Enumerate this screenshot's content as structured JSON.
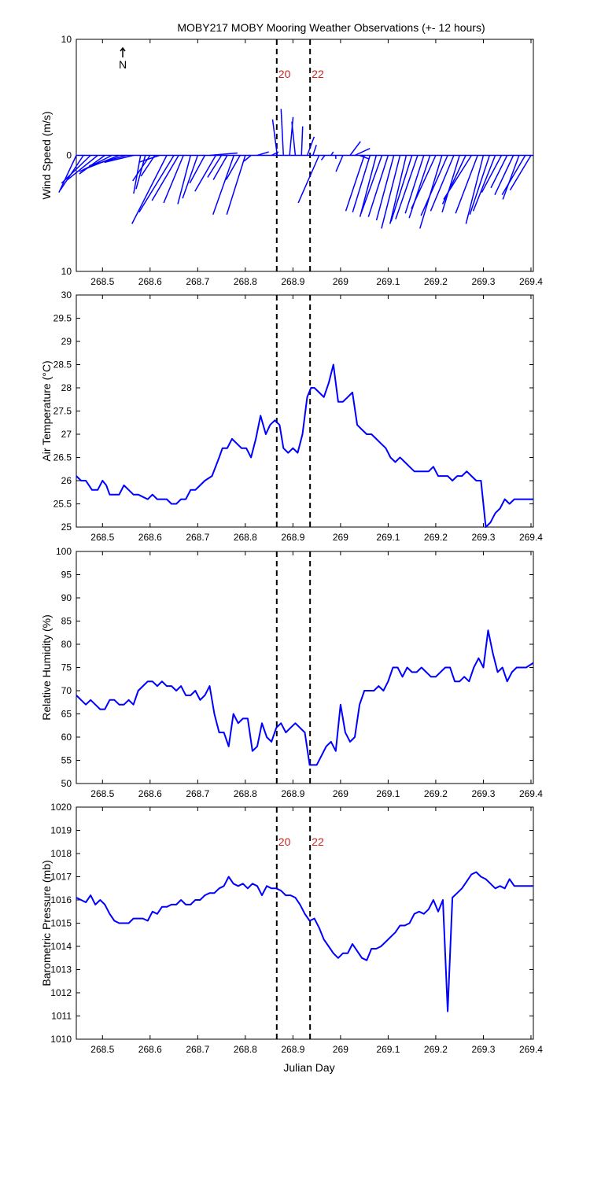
{
  "title": "MOBY217 MOBY Mooring Weather Observations (+- 12 hours)",
  "xlabel": "Julian Day",
  "north_label": "N",
  "colors": {
    "series": "#0000ff",
    "marker_label": "#cc2222",
    "axis": "#000000"
  },
  "markers": [
    {
      "x": 268.866,
      "label": "20"
    },
    {
      "x": 268.936,
      "label": "22"
    }
  ],
  "chart_data": [
    {
      "type": "quiver",
      "ylabel": "Wind Speed (m/s)",
      "xlim": [
        268.445,
        269.405
      ],
      "ylim": [
        -10,
        10
      ],
      "yticks": [
        -10,
        0,
        10
      ],
      "ytick_labels": [
        "10",
        "0",
        "10"
      ],
      "xticks": [
        268.5,
        268.6,
        268.7,
        268.8,
        268.9,
        269.0,
        269.1,
        269.2,
        269.3,
        269.4
      ],
      "xtick_labels": [
        "268.5",
        "268.6",
        "268.7",
        "268.8",
        "268.9",
        "269",
        "269.1",
        "269.2",
        "269.3",
        "269.4"
      ],
      "show_marker_labels": true,
      "data": [
        [
          268.445,
          -1.5,
          -3.2
        ],
        [
          268.46,
          -2.0,
          -3.0
        ],
        [
          268.475,
          -2.5,
          -2.4
        ],
        [
          268.49,
          -2.6,
          -2.1
        ],
        [
          268.505,
          -2.2,
          -1.6
        ],
        [
          268.52,
          -2.8,
          -1.4
        ],
        [
          268.535,
          -3.0,
          -1.2
        ],
        [
          268.55,
          -3.2,
          -0.9
        ],
        [
          268.565,
          -2.5,
          -0.6
        ],
        [
          268.58,
          -0.6,
          -3.3
        ],
        [
          268.59,
          -0.8,
          -2.9
        ],
        [
          268.6,
          -1.5,
          -2.2
        ],
        [
          268.61,
          -1.2,
          -1.8
        ],
        [
          268.62,
          -1.8,
          -0.6
        ],
        [
          268.635,
          -3.0,
          -5.9
        ],
        [
          268.65,
          -3.0,
          -4.9
        ],
        [
          268.66,
          -2.3,
          -3.9
        ],
        [
          268.67,
          -1.7,
          -4.1
        ],
        [
          268.685,
          -1.1,
          -4.2
        ],
        [
          268.7,
          -1.3,
          -3.7
        ],
        [
          268.715,
          -1.3,
          -2.4
        ],
        [
          268.725,
          2.4,
          0.2
        ],
        [
          268.738,
          -1.8,
          -3.1
        ],
        [
          268.75,
          -1.2,
          -1.9
        ],
        [
          268.762,
          -1.2,
          -2.1
        ],
        [
          268.776,
          -1.8,
          -5.1
        ],
        [
          268.789,
          -1.2,
          -2.1
        ],
        [
          268.8,
          -1.6,
          -5.1
        ],
        [
          268.812,
          -0.6,
          -0.5
        ],
        [
          268.825,
          1.0,
          0.3
        ],
        [
          268.84,
          0.0,
          0.0
        ],
        [
          268.855,
          0.6,
          0.3
        ],
        [
          268.867,
          -0.4,
          3.1
        ],
        [
          268.88,
          -0.2,
          4.0
        ],
        [
          268.893,
          0.3,
          3.3
        ],
        [
          268.905,
          -0.3,
          2.9
        ],
        [
          268.918,
          0.1,
          2.5
        ],
        [
          268.93,
          0.6,
          1.6
        ],
        [
          268.942,
          0.3,
          0.9
        ],
        [
          268.955,
          -1.8,
          -4.1
        ],
        [
          268.967,
          -0.3,
          -0.4
        ],
        [
          268.98,
          0.2,
          0.3
        ],
        [
          268.99,
          0.0,
          -0.3
        ],
        [
          269.005,
          -0.6,
          -1.4
        ],
        [
          269.02,
          0.9,
          1.2
        ],
        [
          269.03,
          1.3,
          0.6
        ],
        [
          269.04,
          0.8,
          -0.3
        ],
        [
          269.05,
          -1.6,
          -4.8
        ],
        [
          269.062,
          -1.5,
          -4.9
        ],
        [
          269.075,
          -1.4,
          -5.3
        ],
        [
          269.087,
          -1.8,
          -5.0
        ],
        [
          269.1,
          -1.7,
          -5.3
        ],
        [
          269.112,
          -1.5,
          -5.6
        ],
        [
          269.125,
          -1.6,
          -6.3
        ],
        [
          269.138,
          -1.4,
          -5.9
        ],
        [
          269.15,
          -1.8,
          -5.7
        ],
        [
          269.162,
          -1.9,
          -5.5
        ],
        [
          269.175,
          -1.6,
          -5.0
        ],
        [
          269.188,
          -1.8,
          -5.4
        ],
        [
          269.2,
          -2.1,
          -4.6
        ],
        [
          269.213,
          -1.9,
          -6.3
        ],
        [
          269.225,
          -2.3,
          -5.2
        ],
        [
          269.238,
          -2.0,
          -4.8
        ],
        [
          269.25,
          -1.5,
          -4.9
        ],
        [
          269.263,
          -2.0,
          -4.2
        ],
        [
          269.275,
          -2.4,
          -3.8
        ],
        [
          269.288,
          -1.9,
          -5.0
        ],
        [
          269.3,
          -1.5,
          -5.9
        ],
        [
          269.313,
          -1.7,
          -5.1
        ],
        [
          269.325,
          -1.9,
          -4.8
        ],
        [
          269.338,
          -1.7,
          -3.2
        ],
        [
          269.35,
          -1.4,
          -2.8
        ],
        [
          269.363,
          -1.6,
          -3.4
        ],
        [
          269.375,
          -1.4,
          -3.8
        ],
        [
          269.388,
          -2.0,
          -3.4
        ],
        [
          269.4,
          -1.8,
          -3.0
        ]
      ]
    },
    {
      "type": "line",
      "ylabel": "Air Temperature (°C)",
      "xlim": [
        268.445,
        269.405
      ],
      "ylim": [
        25,
        30
      ],
      "yticks": [
        25,
        25.5,
        26,
        26.5,
        27,
        27.5,
        28,
        28.5,
        29,
        29.5,
        30
      ],
      "ytick_labels": [
        "25",
        "25.5",
        "26",
        "26.5",
        "27",
        "27.5",
        "28",
        "28.5",
        "29",
        "29.5",
        "30"
      ],
      "xticks": [
        268.5,
        268.6,
        268.7,
        268.8,
        268.9,
        269.0,
        269.1,
        269.2,
        269.3,
        269.4
      ],
      "xtick_labels": [
        "268.5",
        "268.6",
        "268.7",
        "268.8",
        "268.9",
        "269",
        "269.1",
        "269.2",
        "269.3",
        "269.4"
      ],
      "show_marker_labels": false,
      "x": [
        268.445,
        268.455,
        268.465,
        268.478,
        268.49,
        268.5,
        268.508,
        268.515,
        268.525,
        268.535,
        268.545,
        268.555,
        268.565,
        268.575,
        268.585,
        268.595,
        268.605,
        268.615,
        268.625,
        268.635,
        268.645,
        268.655,
        268.665,
        268.675,
        268.685,
        268.695,
        268.705,
        268.715,
        268.73,
        268.745,
        268.752,
        268.762,
        268.772,
        268.782,
        268.792,
        268.802,
        268.812,
        268.822,
        268.832,
        268.843,
        268.852,
        268.862,
        268.872,
        268.88,
        268.89,
        268.9,
        268.91,
        268.92,
        268.93,
        268.938,
        268.945,
        268.955,
        268.965,
        268.975,
        268.985,
        268.995,
        269.005,
        269.015,
        269.025,
        269.035,
        269.045,
        269.055,
        269.065,
        269.075,
        269.085,
        269.095,
        269.105,
        269.115,
        269.125,
        269.135,
        269.145,
        269.155,
        269.165,
        269.175,
        269.185,
        269.195,
        269.205,
        269.215,
        269.225,
        269.235,
        269.245,
        269.255,
        269.265,
        269.275,
        269.285,
        269.295,
        269.305,
        269.315,
        269.325,
        269.335,
        269.345,
        269.355,
        269.365,
        269.375,
        269.385,
        269.395,
        269.405
      ],
      "y": [
        26.1,
        26.0,
        26.0,
        25.8,
        25.8,
        26.0,
        25.9,
        25.7,
        25.7,
        25.7,
        25.9,
        25.8,
        25.7,
        25.7,
        25.65,
        25.6,
        25.7,
        25.6,
        25.6,
        25.6,
        25.5,
        25.5,
        25.6,
        25.6,
        25.8,
        25.8,
        25.9,
        26.0,
        26.1,
        26.5,
        26.7,
        26.7,
        26.9,
        26.8,
        26.7,
        26.7,
        26.5,
        26.9,
        27.4,
        27.0,
        27.2,
        27.3,
        27.2,
        26.7,
        26.6,
        26.7,
        26.6,
        27.0,
        27.8,
        28.0,
        28.0,
        27.9,
        27.8,
        28.1,
        28.5,
        27.7,
        27.7,
        27.8,
        27.9,
        27.2,
        27.1,
        27.0,
        27.0,
        26.9,
        26.8,
        26.7,
        26.5,
        26.4,
        26.5,
        26.4,
        26.3,
        26.2,
        26.2,
        26.2,
        26.2,
        26.3,
        26.1,
        26.1,
        26.1,
        26.0,
        26.1,
        26.1,
        26.2,
        26.1,
        26.0,
        26.0,
        25.0,
        25.1,
        25.3,
        25.4,
        25.6,
        25.5,
        25.6,
        25.6,
        25.6,
        25.6,
        25.6
      ]
    },
    {
      "type": "line",
      "ylabel": "Relative Humidity (%)",
      "xlim": [
        268.445,
        269.405
      ],
      "ylim": [
        50,
        100
      ],
      "yticks": [
        50,
        55,
        60,
        65,
        70,
        75,
        80,
        85,
        90,
        95,
        100
      ],
      "ytick_labels": [
        "50",
        "55",
        "60",
        "65",
        "70",
        "75",
        "80",
        "85",
        "90",
        "95",
        "100"
      ],
      "xticks": [
        268.5,
        268.6,
        268.7,
        268.8,
        268.9,
        269.0,
        269.1,
        269.2,
        269.3,
        269.4
      ],
      "xtick_labels": [
        "268.5",
        "268.6",
        "268.7",
        "268.8",
        "268.9",
        "269",
        "269.1",
        "269.2",
        "269.3",
        "269.4"
      ],
      "show_marker_labels": false,
      "x": [
        268.445,
        268.455,
        268.465,
        268.475,
        268.485,
        268.495,
        268.505,
        268.515,
        268.525,
        268.535,
        268.545,
        268.555,
        268.565,
        268.575,
        268.585,
        268.595,
        268.605,
        268.615,
        268.625,
        268.635,
        268.645,
        268.655,
        268.665,
        268.675,
        268.685,
        268.695,
        268.705,
        268.715,
        268.725,
        268.735,
        268.745,
        268.755,
        268.765,
        268.775,
        268.785,
        268.795,
        268.805,
        268.815,
        268.825,
        268.835,
        268.845,
        268.855,
        268.865,
        268.875,
        268.885,
        268.895,
        268.905,
        268.915,
        268.925,
        268.935,
        268.94,
        268.95,
        268.96,
        268.97,
        268.98,
        268.99,
        269.0,
        269.01,
        269.02,
        269.03,
        269.04,
        269.05,
        269.06,
        269.07,
        269.08,
        269.09,
        269.1,
        269.11,
        269.12,
        269.13,
        269.14,
        269.15,
        269.16,
        269.17,
        269.18,
        269.19,
        269.2,
        269.21,
        269.22,
        269.23,
        269.24,
        269.25,
        269.26,
        269.27,
        269.28,
        269.29,
        269.3,
        269.31,
        269.32,
        269.33,
        269.34,
        269.35,
        269.36,
        269.37,
        269.38,
        269.39,
        269.405
      ],
      "y": [
        69,
        68,
        67,
        68,
        67,
        66,
        66,
        68,
        68,
        67,
        67,
        68,
        67,
        70,
        71,
        72,
        72,
        71,
        72,
        71,
        71,
        70,
        71,
        69,
        69,
        70,
        68,
        69,
        71,
        65,
        61,
        61,
        58,
        65,
        63,
        64,
        64,
        57,
        58,
        63,
        60,
        59,
        62,
        63,
        61,
        62,
        63,
        62,
        61,
        54,
        54,
        54,
        56,
        58,
        59,
        57,
        67,
        61,
        59,
        60,
        67,
        70,
        70,
        70,
        71,
        70,
        72,
        75,
        75,
        73,
        75,
        74,
        74,
        75,
        74,
        73,
        73,
        74,
        75,
        75,
        72,
        72,
        73,
        72,
        75,
        77,
        75,
        83,
        78,
        74,
        75,
        72,
        74,
        75,
        75,
        75,
        76
      ]
    },
    {
      "type": "line",
      "ylabel": "Barometric Pressure (mb)",
      "xlim": [
        268.445,
        269.405
      ],
      "ylim": [
        1010,
        1020
      ],
      "yticks": [
        1010,
        1011,
        1012,
        1013,
        1014,
        1015,
        1016,
        1017,
        1018,
        1019,
        1020
      ],
      "ytick_labels": [
        "1010",
        "1011",
        "1012",
        "1013",
        "1014",
        "1015",
        "1016",
        "1017",
        "1018",
        "1019",
        "1020"
      ],
      "xticks": [
        268.5,
        268.6,
        268.7,
        268.8,
        268.9,
        269.0,
        269.1,
        269.2,
        269.3,
        269.4
      ],
      "xtick_labels": [
        "268.5",
        "268.6",
        "268.7",
        "268.8",
        "268.9",
        "269",
        "269.1",
        "269.2",
        "269.3",
        "269.4"
      ],
      "show_marker_labels": true,
      "x": [
        268.445,
        268.455,
        268.465,
        268.475,
        268.485,
        268.495,
        268.505,
        268.515,
        268.525,
        268.535,
        268.545,
        268.555,
        268.565,
        268.575,
        268.585,
        268.595,
        268.605,
        268.615,
        268.625,
        268.635,
        268.645,
        268.655,
        268.665,
        268.675,
        268.685,
        268.695,
        268.705,
        268.715,
        268.725,
        268.735,
        268.745,
        268.755,
        268.765,
        268.775,
        268.785,
        268.795,
        268.805,
        268.815,
        268.825,
        268.835,
        268.845,
        268.855,
        268.865,
        268.875,
        268.885,
        268.895,
        268.905,
        268.915,
        268.925,
        268.935,
        268.945,
        268.955,
        268.965,
        268.975,
        268.985,
        268.995,
        269.005,
        269.015,
        269.025,
        269.035,
        269.045,
        269.055,
        269.065,
        269.075,
        269.085,
        269.095,
        269.105,
        269.115,
        269.125,
        269.135,
        269.145,
        269.155,
        269.165,
        269.175,
        269.185,
        269.195,
        269.205,
        269.215,
        269.225,
        269.235,
        269.245,
        269.255,
        269.265,
        269.275,
        269.285,
        269.295,
        269.305,
        269.315,
        269.325,
        269.335,
        269.345,
        269.355,
        269.365,
        269.375,
        269.385,
        269.395,
        269.405
      ],
      "y": [
        1016.1,
        1016.0,
        1015.9,
        1016.2,
        1015.8,
        1016.0,
        1015.8,
        1015.4,
        1015.1,
        1015.0,
        1015.0,
        1015.0,
        1015.2,
        1015.2,
        1015.2,
        1015.1,
        1015.5,
        1015.4,
        1015.7,
        1015.7,
        1015.8,
        1015.8,
        1016.0,
        1015.8,
        1015.8,
        1016.0,
        1016.0,
        1016.2,
        1016.3,
        1016.3,
        1016.5,
        1016.6,
        1017.0,
        1016.7,
        1016.6,
        1016.7,
        1016.5,
        1016.7,
        1016.6,
        1016.2,
        1016.6,
        1016.5,
        1016.5,
        1016.4,
        1016.2,
        1016.2,
        1016.1,
        1015.8,
        1015.4,
        1015.1,
        1015.2,
        1014.8,
        1014.3,
        1014.0,
        1013.7,
        1013.5,
        1013.7,
        1013.7,
        1014.1,
        1013.8,
        1013.5,
        1013.4,
        1013.9,
        1013.9,
        1014.0,
        1014.2,
        1014.4,
        1014.6,
        1014.9,
        1014.9,
        1015.0,
        1015.4,
        1015.5,
        1015.4,
        1015.6,
        1016.0,
        1015.5,
        1016.0,
        1011.2,
        1016.1,
        1016.3,
        1016.5,
        1016.8,
        1017.1,
        1017.2,
        1017.0,
        1016.9,
        1016.7,
        1016.5,
        1016.6,
        1016.5,
        1016.9,
        1016.6,
        1016.6,
        1016.6,
        1016.6,
        1016.6
      ]
    }
  ]
}
